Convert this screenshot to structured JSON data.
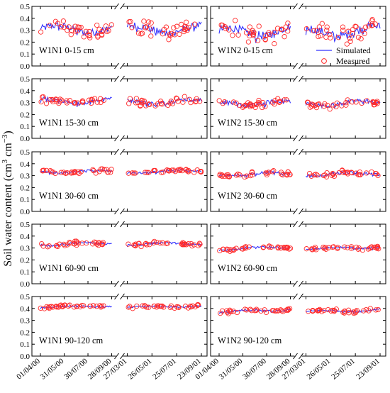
{
  "chart_data": {
    "type": "line",
    "ylabel": "Soil water content (cm³ cm⁻³)",
    "ylabel_parts": {
      "main": "Soil water content (cm",
      "sup1": "3",
      "mid": " cm",
      "sup2": "−3",
      "end": ")"
    },
    "ylim": [
      0.0,
      0.5
    ],
    "yticks": [
      "0.0",
      "0.1",
      "0.2",
      "0.3",
      "0.4",
      "0.5"
    ],
    "x_tick_labels": [
      "01/04/00",
      "31/05/00",
      "30/07/00",
      "28/09/00",
      "27/03/01",
      "26/05/01",
      "25/07/01",
      "23/09/01"
    ],
    "x_axis_break": "between 28/09/00 and 27/03/01",
    "series": [
      {
        "name": "Simulated",
        "style": "line",
        "color": "#3333ff"
      },
      {
        "name": "Measured",
        "style": "open circles",
        "color": "#ff2a2a"
      }
    ],
    "legend_location": "first row, right panel",
    "panels": [
      {
        "label": "W1N1 0-15 cm",
        "base": 0.31,
        "amp": 0.05,
        "noise": 0.045,
        "trend": 0.0
      },
      {
        "label": "W1N2 0-15 cm",
        "base": 0.28,
        "amp": 0.06,
        "noise": 0.05,
        "trend": 0.02
      },
      {
        "label": "W1N1 15-30 cm",
        "base": 0.31,
        "amp": 0.03,
        "noise": 0.02,
        "trend": 0.0
      },
      {
        "label": "W1N2 15-30 cm",
        "base": 0.29,
        "amp": 0.03,
        "noise": 0.02,
        "trend": 0.01
      },
      {
        "label": "W1N1 30-60 cm",
        "base": 0.33,
        "amp": 0.015,
        "noise": 0.01,
        "trend": 0.01
      },
      {
        "label": "W1N2 30-60 cm",
        "base": 0.31,
        "amp": 0.02,
        "noise": 0.012,
        "trend": 0.01
      },
      {
        "label": "W1N1 60-90 cm",
        "base": 0.33,
        "amp": 0.015,
        "noise": 0.01,
        "trend": 0.01
      },
      {
        "label": "W1N2 60-90 cm",
        "base": 0.29,
        "amp": 0.012,
        "noise": 0.01,
        "trend": 0.02
      },
      {
        "label": "W1N1 90-120 cm",
        "base": 0.41,
        "amp": 0.01,
        "noise": 0.008,
        "trend": 0.01
      },
      {
        "label": "W1N2 90-120 cm",
        "base": 0.37,
        "amp": 0.015,
        "noise": 0.01,
        "trend": 0.02
      }
    ]
  }
}
